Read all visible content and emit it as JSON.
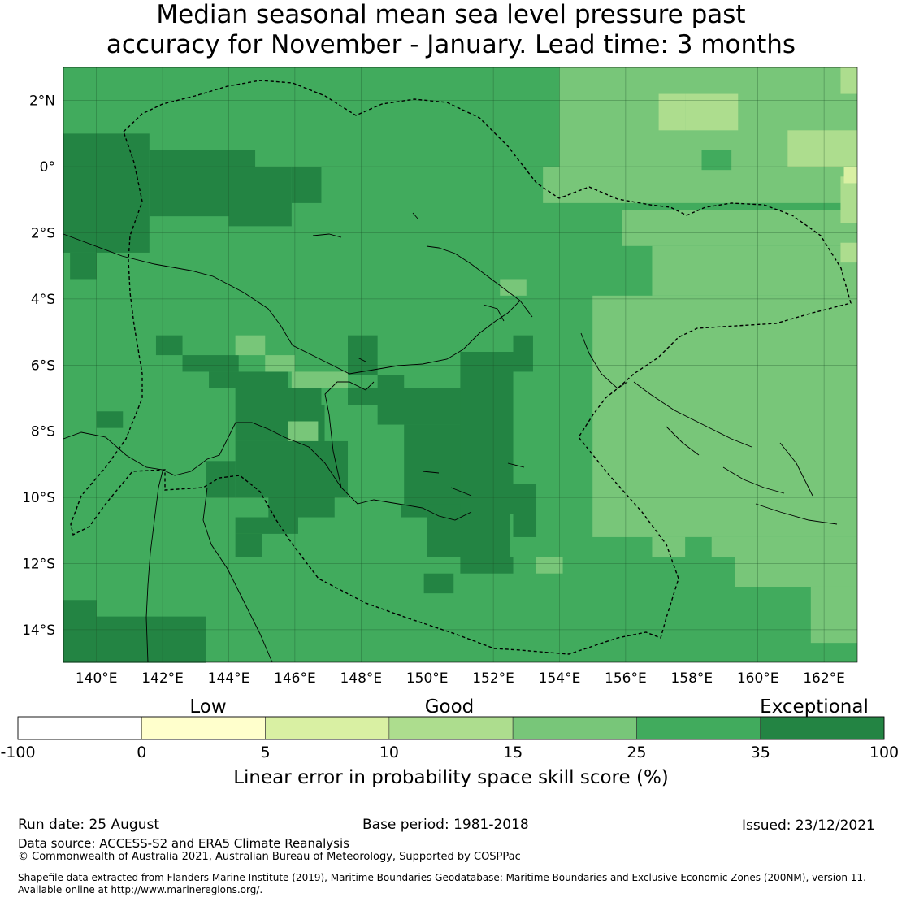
{
  "title": {
    "line1": "Median seasonal mean sea level pressure past",
    "line2": "accuracy for November - January. Lead time: 3 months"
  },
  "map": {
    "lon_range": [
      139,
      163
    ],
    "lat_range": [
      -15,
      3
    ],
    "lon_ticks": [
      "140°E",
      "142°E",
      "144°E",
      "146°E",
      "148°E",
      "150°E",
      "152°E",
      "154°E",
      "156°E",
      "158°E",
      "160°E",
      "162°E"
    ],
    "lat_ticks": [
      "2°N",
      "0°",
      "2°S",
      "4°S",
      "6°S",
      "8°S",
      "10°S",
      "12°S",
      "14°S"
    ],
    "gridlines": true,
    "boundary": "dashed line — maritime boundary (EEZ)"
  },
  "legend": {
    "categories": [
      "Low",
      "Good",
      "Exceptional"
    ],
    "bins": [
      {
        "from": -100,
        "to": 0,
        "color": "#ffffff"
      },
      {
        "from": 0,
        "to": 5,
        "color": "#ffffcc"
      },
      {
        "from": 5,
        "to": 10,
        "color": "#d9f0a3"
      },
      {
        "from": 10,
        "to": 15,
        "color": "#addd8e"
      },
      {
        "from": 15,
        "to": 25,
        "color": "#78c679"
      },
      {
        "from": 25,
        "to": 35,
        "color": "#41ab5d"
      },
      {
        "from": 35,
        "to": 100,
        "color": "#238443"
      }
    ],
    "tick_labels": [
      "-100",
      "0",
      "5",
      "10",
      "15",
      "25",
      "35",
      "100"
    ],
    "title": "Linear error in probability space skill score (%)"
  },
  "footer": {
    "run_date": "Run date: 25 August",
    "base_period": "Base period: 1981-2018",
    "issued": "Issued: 23/12/2021",
    "data_source": "Data source: ACCESS-S2 and ERA5 Climate Reanalysis",
    "copyright": "© Commonwealth of Australia 2021, Australian Bureau of Meteorology, Supported by COSPPac",
    "shapefile_line1": "Shapefile data extracted from Flanders Marine Institute (2019), Maritime Boundaries Geodatabase: Maritime Boundaries and Exclusive Economic Zones (200NM), version 11.",
    "shapefile_line2": "Available online at http://www.marineregions.org/."
  }
}
